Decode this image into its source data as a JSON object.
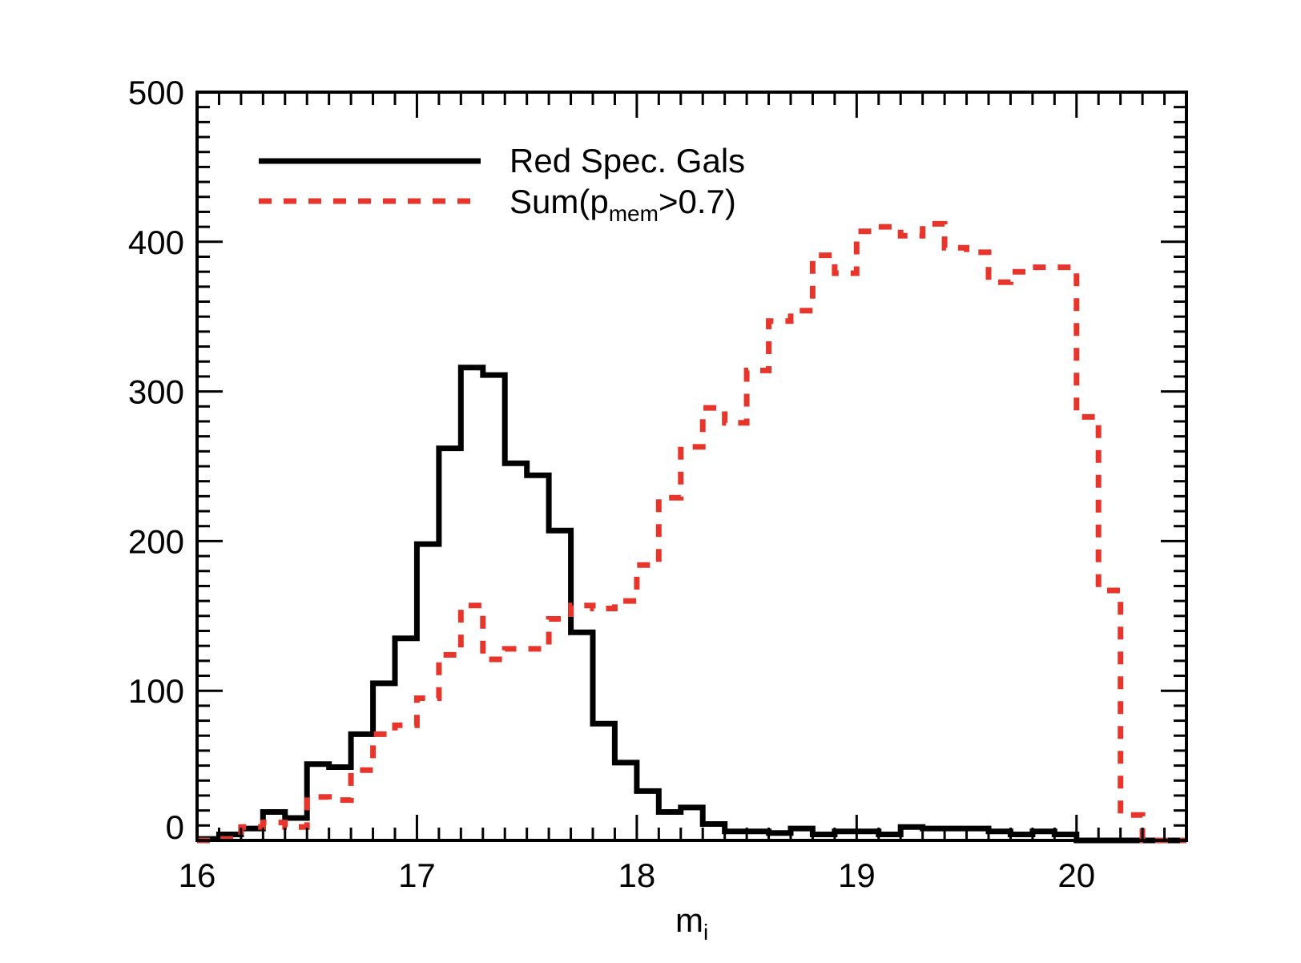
{
  "chart_data": {
    "type": "bar",
    "histtype": "step",
    "title": "",
    "xlabel": "m",
    "xlabel_subscript": "i",
    "ylabel": "",
    "xlim": [
      16,
      20.5
    ],
    "ylim": [
      0,
      500
    ],
    "xticks": [
      16,
      17,
      18,
      19,
      20
    ],
    "yticks": [
      0,
      100,
      200,
      300,
      400,
      500
    ],
    "x_minor_step": 0.1,
    "y_minor_step": 10,
    "grid": false,
    "legend_position": "upper left",
    "bin_width": 0.1,
    "bin_edges_start": 16.0,
    "series": [
      {
        "name": "Red Spec. Gals",
        "color": "#000000",
        "linestyle": "solid",
        "values": [
          1,
          4,
          8,
          19,
          15,
          51,
          49,
          71,
          105,
          135,
          198,
          262,
          316,
          311,
          252,
          244,
          207,
          139,
          78,
          52,
          33,
          19,
          22,
          11,
          6,
          6,
          5,
          8,
          4,
          6,
          6,
          4,
          9,
          8,
          8,
          8,
          6,
          4,
          6,
          4,
          0,
          0,
          0,
          0,
          0
        ]
      },
      {
        "name": "Sum(p_mem>0.7)",
        "color": "#e8352b",
        "linestyle": "dashed",
        "values": [
          0,
          1,
          9,
          12,
          9,
          29,
          27,
          47,
          71,
          77,
          95,
          124,
          157,
          121,
          128,
          128,
          148,
          157,
          155,
          160,
          184,
          229,
          263,
          289,
          279,
          314,
          347,
          354,
          391,
          379,
          407,
          410,
          404,
          412,
          396,
          393,
          373,
          380,
          383,
          383,
          283,
          167,
          17,
          0,
          0
        ]
      }
    ]
  },
  "legend": {
    "items": [
      {
        "label": "Red Spec. Gals",
        "sub": "",
        "tail": ""
      },
      {
        "label": "Sum(p",
        "sub": "mem",
        "tail": ">0.7)"
      }
    ]
  },
  "axes": {
    "x_tick_labels": [
      "16",
      "17",
      "18",
      "19",
      "20"
    ],
    "y_tick_labels": [
      "0",
      "100",
      "200",
      "300",
      "400",
      "500"
    ]
  }
}
